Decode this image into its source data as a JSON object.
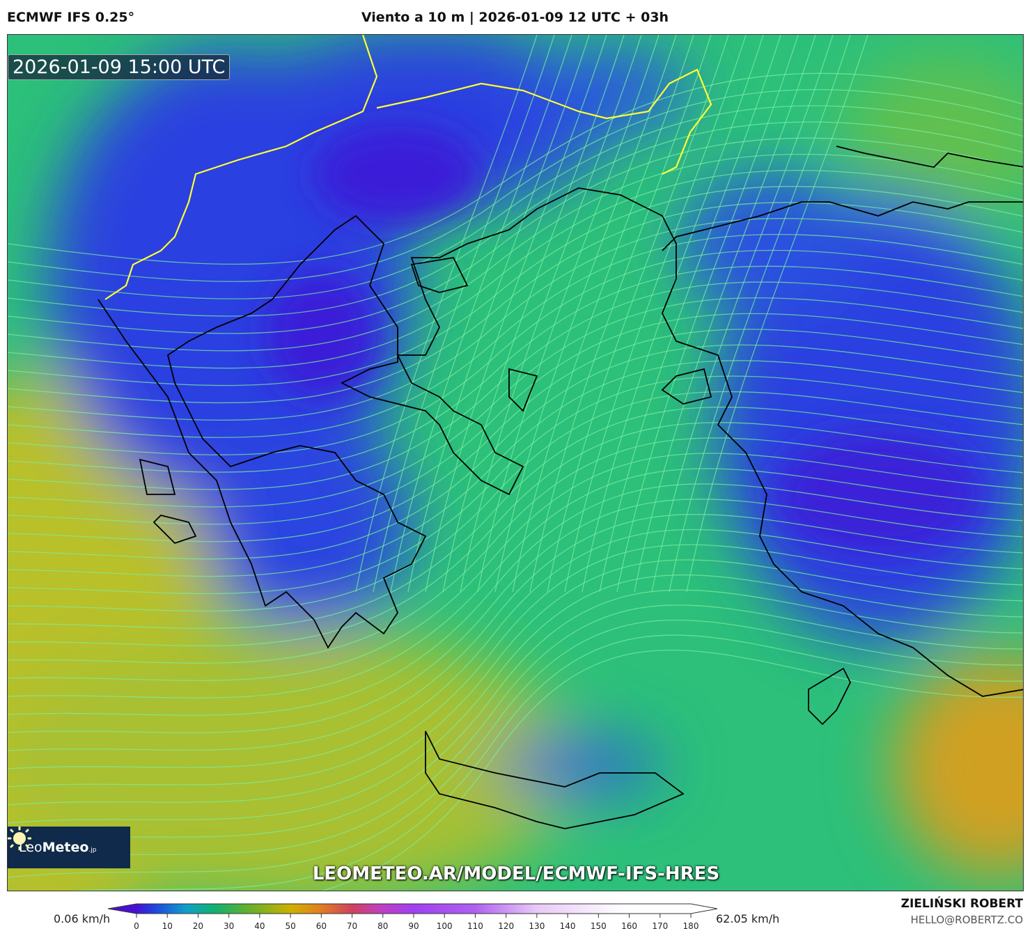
{
  "header": {
    "model": "ECMWF IFS 0.25°",
    "title": "Viento a 10 m | 2026-01-09 12 UTC + 03h"
  },
  "map": {
    "valid_time": "2026-01-09 15:00 UTC",
    "url": "LEOMETEO.AR/MODEL/ECMWF-IFS-HRES",
    "logo": {
      "light": "Leo",
      "bold": "Meteo",
      "suffix": ".jp"
    },
    "colors": {
      "calm": "#2a3fe0",
      "moderate": "#2cc07a",
      "strong": "#b8c02a",
      "border": "#ffff33",
      "coast": "#000000",
      "streamline": "#7cf0a0"
    }
  },
  "colorbar": {
    "min_label": "0.06 km/h",
    "max_label": "62.05 km/h",
    "ticks": [
      "0",
      "10",
      "20",
      "30",
      "40",
      "50",
      "60",
      "70",
      "80",
      "90",
      "100",
      "110",
      "120",
      "130",
      "140",
      "150",
      "160",
      "170",
      "180"
    ]
  },
  "credits": {
    "author": "ZIELIŃSKI ROBERT",
    "email": "HELLO@ROBERTZ.CO"
  }
}
